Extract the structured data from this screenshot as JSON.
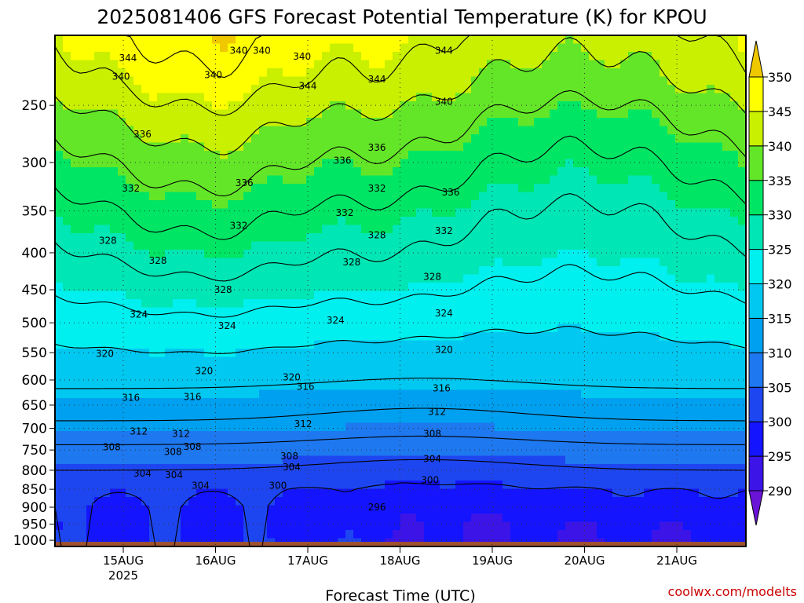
{
  "chart_data": {
    "type": "heatmap",
    "title": "2025081406 GFS Forecast Potential Temperature (K) for KPOU",
    "xlabel": "Forecast Time (UTC)",
    "ylabel": "",
    "x_ticks": [
      "15AUG",
      "16AUG",
      "17AUG",
      "18AUG",
      "19AUG",
      "20AUG",
      "21AUG"
    ],
    "x_year_label": "2025",
    "y_ticks": [
      250,
      300,
      350,
      400,
      450,
      500,
      550,
      600,
      650,
      700,
      750,
      800,
      850,
      900,
      950,
      1000
    ],
    "y_scale": "log-pressure",
    "y_range": [
      200,
      1020
    ],
    "grid": true,
    "colorbar": {
      "levels": [
        290,
        295,
        300,
        305,
        310,
        315,
        320,
        325,
        330,
        335,
        340,
        345,
        350
      ],
      "colors": [
        "#6a14d8",
        "#3c14e8",
        "#1414ff",
        "#1e46f0",
        "#1e78f0",
        "#00a0f0",
        "#00c8f0",
        "#00f0f0",
        "#00e6b4",
        "#00e664",
        "#64e628",
        "#c8f000",
        "#ffff00",
        "#f0c800"
      ],
      "extend": "both"
    },
    "contour_interval": 4,
    "contour_labels": [
      {
        "text": "344",
        "time": 3.2,
        "p": 215
      },
      {
        "text": "340",
        "time": 2.9,
        "p": 228
      },
      {
        "text": "336",
        "time": 3.83,
        "p": 274
      },
      {
        "text": "332",
        "time": 3.33,
        "p": 326
      },
      {
        "text": "328",
        "time": 2.33,
        "p": 385
      },
      {
        "text": "328",
        "time": 4.5,
        "p": 410
      },
      {
        "text": "324",
        "time": 3.67,
        "p": 487
      },
      {
        "text": "320",
        "time": 2.2,
        "p": 552
      },
      {
        "text": "316",
        "time": 3.33,
        "p": 635
      },
      {
        "text": "312",
        "time": 3.67,
        "p": 707
      },
      {
        "text": "308",
        "time": 2.5,
        "p": 743
      },
      {
        "text": "304",
        "time": 3.83,
        "p": 808
      },
      {
        "text": "340",
        "time": 6.9,
        "p": 227
      },
      {
        "text": "340",
        "time": 8.0,
        "p": 210
      },
      {
        "text": "308",
        "time": 6.0,
        "p": 742
      },
      {
        "text": "304",
        "time": 6.35,
        "p": 840
      },
      {
        "text": "340",
        "time": 9.0,
        "p": 210
      },
      {
        "text": "336",
        "time": 8.25,
        "p": 320
      },
      {
        "text": "332",
        "time": 8.0,
        "p": 367
      },
      {
        "text": "328",
        "time": 7.33,
        "p": 450
      },
      {
        "text": "324",
        "time": 7.5,
        "p": 505
      },
      {
        "text": "320",
        "time": 6.5,
        "p": 583
      },
      {
        "text": "316",
        "time": 6.0,
        "p": 633
      },
      {
        "text": "312",
        "time": 5.5,
        "p": 712
      },
      {
        "text": "308",
        "time": 5.15,
        "p": 754
      },
      {
        "text": "304",
        "time": 5.2,
        "p": 812
      },
      {
        "text": "340",
        "time": 10.75,
        "p": 214
      },
      {
        "text": "344",
        "time": 11.0,
        "p": 235
      },
      {
        "text": "336",
        "time": 12.5,
        "p": 298
      },
      {
        "text": "332",
        "time": 12.6,
        "p": 352
      },
      {
        "text": "328",
        "time": 12.9,
        "p": 412
      },
      {
        "text": "324",
        "time": 12.2,
        "p": 496
      },
      {
        "text": "320",
        "time": 10.3,
        "p": 595
      },
      {
        "text": "316",
        "time": 10.9,
        "p": 613
      },
      {
        "text": "312",
        "time": 10.8,
        "p": 690
      },
      {
        "text": "308",
        "time": 10.2,
        "p": 765
      },
      {
        "text": "304",
        "time": 10.3,
        "p": 792
      },
      {
        "text": "300",
        "time": 9.7,
        "p": 840
      },
      {
        "text": "344",
        "time": 16.9,
        "p": 210
      },
      {
        "text": "340",
        "time": 16.9,
        "p": 247
      },
      {
        "text": "336",
        "time": 17.2,
        "p": 330
      },
      {
        "text": "332",
        "time": 16.9,
        "p": 373
      },
      {
        "text": "328",
        "time": 16.4,
        "p": 432
      },
      {
        "text": "324",
        "time": 16.9,
        "p": 485
      },
      {
        "text": "320",
        "time": 16.9,
        "p": 545
      },
      {
        "text": "316",
        "time": 16.8,
        "p": 616
      },
      {
        "text": "312",
        "time": 16.6,
        "p": 664
      },
      {
        "text": "308",
        "time": 16.4,
        "p": 712
      },
      {
        "text": "304",
        "time": 16.4,
        "p": 772
      },
      {
        "text": "300",
        "time": 16.3,
        "p": 826
      },
      {
        "text": "296",
        "time": 14.0,
        "p": 900
      },
      {
        "text": "344",
        "time": 14.0,
        "p": 230
      },
      {
        "text": "336",
        "time": 14.0,
        "p": 286
      },
      {
        "text": "332",
        "time": 14.0,
        "p": 326
      },
      {
        "text": "328",
        "time": 14.0,
        "p": 378
      }
    ]
  },
  "credit": "coolwx.com/modelts"
}
